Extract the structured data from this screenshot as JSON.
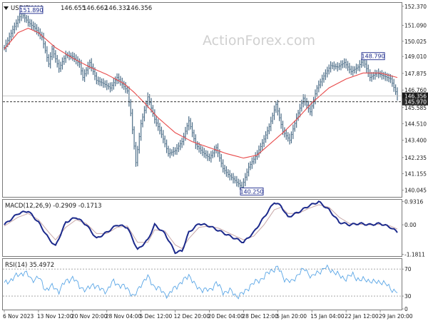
{
  "colors": {
    "price": "#4d6e88",
    "ma": "#e84a4a",
    "macd_line": "#1c2a8c",
    "macd_signal": "#c8a8a8",
    "rsi": "#5aa6e6",
    "grid_dash": "#9a9a9a",
    "frame": "#7a7a7a",
    "label_box": "#1c2a8c",
    "current_box": "#1a1a1a",
    "watermark": "#d0d0d0"
  },
  "watermark": "ActionForex.com",
  "chart_data": [
    {
      "type": "line",
      "panel": "price",
      "title": "USDJPY,H4",
      "ohlc_readout": [
        "146.655",
        "146.662",
        "146.332",
        "146.356"
      ],
      "ylim": [
        139.6,
        152.6
      ],
      "y_ticks": [
        "152.370",
        "151.090",
        "150.025",
        "149.010",
        "147.875",
        "146.760",
        "145.585",
        "144.510",
        "143.400",
        "142.235",
        "141.155",
        "140.045"
      ],
      "y_tick_values": [
        152.37,
        151.09,
        150.025,
        149.01,
        147.875,
        146.76,
        145.585,
        144.51,
        143.4,
        142.235,
        141.155,
        140.045
      ],
      "current_price": 146.356,
      "current_label": "146.356",
      "dashed_level": 145.97,
      "dashed_label": "145.970",
      "annotations": [
        {
          "label": "151.890",
          "value": 151.89,
          "x": 10
        },
        {
          "label": "148.790",
          "value": 148.79,
          "x": 210
        },
        {
          "label": "140.250",
          "value": 140.25,
          "x": 139
        }
      ],
      "x_ticks": [
        "6 Nov 2023",
        "13 Nov 12:00",
        "20 Nov 20:00",
        "28 Nov 04:00",
        "5 Dec 12:00",
        "12 Dec 20:00",
        "20 Dec 04:00",
        "28 Dec 12:00",
        "5 Jan 20:00",
        "15 Jan 04:00",
        "22 Jan 12:00",
        "29 Jan 20:00"
      ],
      "x_tick_positions": [
        0,
        20,
        40,
        60,
        80,
        100,
        120,
        140,
        160,
        180,
        200,
        220
      ],
      "x_count": 230,
      "price_keypoints": [
        [
          0,
          149.6
        ],
        [
          5,
          150.8
        ],
        [
          10,
          151.89
        ],
        [
          14,
          151.3
        ],
        [
          18,
          150.9
        ],
        [
          22,
          150.3
        ],
        [
          26,
          148.5
        ],
        [
          28,
          149.5
        ],
        [
          32,
          148.2
        ],
        [
          36,
          149.1
        ],
        [
          40,
          149.0
        ],
        [
          44,
          148.5
        ],
        [
          46,
          147.6
        ],
        [
          50,
          148.6
        ],
        [
          54,
          147.4
        ],
        [
          58,
          147.2
        ],
        [
          62,
          146.9
        ],
        [
          66,
          147.6
        ],
        [
          70,
          147.0
        ],
        [
          72,
          146.7
        ],
        [
          74,
          145.2
        ],
        [
          77,
          141.9
        ],
        [
          80,
          144.5
        ],
        [
          84,
          146.3
        ],
        [
          88,
          144.8
        ],
        [
          92,
          143.8
        ],
        [
          96,
          142.5
        ],
        [
          100,
          142.7
        ],
        [
          104,
          143.3
        ],
        [
          108,
          144.7
        ],
        [
          112,
          143.1
        ],
        [
          116,
          142.6
        ],
        [
          120,
          142.2
        ],
        [
          124,
          142.9
        ],
        [
          128,
          141.5
        ],
        [
          131,
          141.1
        ],
        [
          135,
          140.7
        ],
        [
          139,
          140.25
        ],
        [
          143,
          141.6
        ],
        [
          147,
          142.3
        ],
        [
          151,
          143.2
        ],
        [
          155,
          144.3
        ],
        [
          159,
          145.8
        ],
        [
          163,
          144.0
        ],
        [
          167,
          143.4
        ],
        [
          171,
          144.9
        ],
        [
          175,
          146.2
        ],
        [
          179,
          145.3
        ],
        [
          183,
          146.9
        ],
        [
          187,
          147.7
        ],
        [
          191,
          148.4
        ],
        [
          195,
          148.3
        ],
        [
          199,
          148.6
        ],
        [
          203,
          148.0
        ],
        [
          207,
          148.3
        ],
        [
          210,
          148.79
        ],
        [
          214,
          147.6
        ],
        [
          218,
          147.9
        ],
        [
          222,
          147.7
        ],
        [
          226,
          147.5
        ],
        [
          230,
          146.356
        ]
      ],
      "ma_keypoints": [
        [
          0,
          149.5
        ],
        [
          8,
          150.6
        ],
        [
          14,
          150.9
        ],
        [
          20,
          150.6
        ],
        [
          30,
          149.6
        ],
        [
          40,
          148.9
        ],
        [
          50,
          148.3
        ],
        [
          60,
          147.8
        ],
        [
          70,
          147.2
        ],
        [
          76,
          146.6
        ],
        [
          82,
          145.9
        ],
        [
          90,
          144.9
        ],
        [
          100,
          143.9
        ],
        [
          110,
          143.3
        ],
        [
          120,
          142.9
        ],
        [
          130,
          142.5
        ],
        [
          140,
          142.2
        ],
        [
          148,
          142.4
        ],
        [
          156,
          143.2
        ],
        [
          164,
          144.0
        ],
        [
          172,
          144.9
        ],
        [
          180,
          145.9
        ],
        [
          190,
          146.9
        ],
        [
          200,
          147.5
        ],
        [
          210,
          147.9
        ],
        [
          220,
          147.9
        ],
        [
          230,
          147.6
        ]
      ]
    },
    {
      "type": "line",
      "panel": "macd",
      "title": "MACD(12,26,9) -0.2909 -0.1713",
      "ylim": [
        -1.25,
        1.0
      ],
      "y_ticks": [
        "0.9316",
        "0.00",
        "-1.1811"
      ],
      "y_tick_values": [
        0.9316,
        0.0,
        -1.1811
      ],
      "x_count": 230,
      "macd_keypoints": [
        [
          0,
          0.0
        ],
        [
          8,
          0.45
        ],
        [
          14,
          0.55
        ],
        [
          20,
          0.1
        ],
        [
          26,
          -0.55
        ],
        [
          30,
          -0.85
        ],
        [
          36,
          0.1
        ],
        [
          42,
          0.3
        ],
        [
          48,
          0.0
        ],
        [
          54,
          -0.55
        ],
        [
          60,
          -0.3
        ],
        [
          66,
          0.0
        ],
        [
          72,
          -0.1
        ],
        [
          78,
          -1.0
        ],
        [
          84,
          -0.6
        ],
        [
          88,
          0.0
        ],
        [
          94,
          -0.35
        ],
        [
          100,
          -1.1
        ],
        [
          104,
          -1.05
        ],
        [
          108,
          -0.3
        ],
        [
          114,
          0.05
        ],
        [
          120,
          -0.05
        ],
        [
          126,
          -0.25
        ],
        [
          132,
          -0.45
        ],
        [
          140,
          -0.7
        ],
        [
          146,
          -0.3
        ],
        [
          152,
          0.3
        ],
        [
          158,
          0.9
        ],
        [
          162,
          0.75
        ],
        [
          166,
          0.3
        ],
        [
          172,
          0.5
        ],
        [
          178,
          0.75
        ],
        [
          184,
          0.92
        ],
        [
          190,
          0.6
        ],
        [
          196,
          0.1
        ],
        [
          202,
          0.0
        ],
        [
          208,
          0.05
        ],
        [
          214,
          0.0
        ],
        [
          220,
          0.05
        ],
        [
          226,
          -0.1
        ],
        [
          230,
          -0.29
        ]
      ],
      "signal_keypoints": [
        [
          0,
          -0.05
        ],
        [
          8,
          0.3
        ],
        [
          14,
          0.45
        ],
        [
          20,
          0.2
        ],
        [
          26,
          -0.3
        ],
        [
          30,
          -0.6
        ],
        [
          36,
          -0.1
        ],
        [
          42,
          0.2
        ],
        [
          48,
          0.05
        ],
        [
          54,
          -0.35
        ],
        [
          60,
          -0.35
        ],
        [
          66,
          -0.1
        ],
        [
          72,
          -0.05
        ],
        [
          78,
          -0.7
        ],
        [
          84,
          -0.7
        ],
        [
          88,
          -0.2
        ],
        [
          94,
          -0.25
        ],
        [
          100,
          -0.8
        ],
        [
          104,
          -0.95
        ],
        [
          108,
          -0.55
        ],
        [
          114,
          -0.1
        ],
        [
          120,
          -0.05
        ],
        [
          126,
          -0.15
        ],
        [
          132,
          -0.35
        ],
        [
          140,
          -0.6
        ],
        [
          146,
          -0.45
        ],
        [
          152,
          0.0
        ],
        [
          158,
          0.6
        ],
        [
          162,
          0.7
        ],
        [
          166,
          0.45
        ],
        [
          172,
          0.45
        ],
        [
          178,
          0.65
        ],
        [
          184,
          0.8
        ],
        [
          190,
          0.7
        ],
        [
          196,
          0.3
        ],
        [
          202,
          0.05
        ],
        [
          208,
          0.02
        ],
        [
          214,
          0.0
        ],
        [
          220,
          0.02
        ],
        [
          226,
          -0.05
        ],
        [
          230,
          -0.17
        ]
      ]
    },
    {
      "type": "line",
      "panel": "rsi",
      "title": "RSI(14) 35.4972",
      "ylim": [
        10,
        85
      ],
      "y_ticks": [
        "70",
        "30",
        "0"
      ],
      "y_tick_values": [
        70,
        30,
        0
      ],
      "dashed_levels": [
        70,
        30
      ],
      "x_count": 230,
      "rsi_keypoints": [
        [
          0,
          48
        ],
        [
          6,
          58
        ],
        [
          12,
          66
        ],
        [
          16,
          54
        ],
        [
          20,
          58
        ],
        [
          24,
          40
        ],
        [
          28,
          44
        ],
        [
          32,
          38
        ],
        [
          36,
          52
        ],
        [
          40,
          57
        ],
        [
          44,
          45
        ],
        [
          48,
          38
        ],
        [
          52,
          48
        ],
        [
          56,
          40
        ],
        [
          60,
          38
        ],
        [
          64,
          52
        ],
        [
          68,
          45
        ],
        [
          72,
          42
        ],
        [
          76,
          28
        ],
        [
          80,
          48
        ],
        [
          84,
          58
        ],
        [
          88,
          44
        ],
        [
          92,
          38
        ],
        [
          96,
          30
        ],
        [
          100,
          44
        ],
        [
          104,
          50
        ],
        [
          108,
          62
        ],
        [
          112,
          44
        ],
        [
          116,
          40
        ],
        [
          120,
          38
        ],
        [
          124,
          50
        ],
        [
          128,
          36
        ],
        [
          132,
          38
        ],
        [
          136,
          30
        ],
        [
          140,
          34
        ],
        [
          144,
          46
        ],
        [
          148,
          52
        ],
        [
          152,
          58
        ],
        [
          156,
          68
        ],
        [
          160,
          72
        ],
        [
          164,
          56
        ],
        [
          168,
          50
        ],
        [
          172,
          63
        ],
        [
          176,
          70
        ],
        [
          180,
          58
        ],
        [
          184,
          66
        ],
        [
          188,
          72
        ],
        [
          192,
          68
        ],
        [
          196,
          60
        ],
        [
          200,
          56
        ],
        [
          204,
          62
        ],
        [
          208,
          53
        ],
        [
          212,
          55
        ],
        [
          216,
          50
        ],
        [
          220,
          52
        ],
        [
          224,
          46
        ],
        [
          228,
          38
        ],
        [
          230,
          35.5
        ]
      ]
    }
  ]
}
